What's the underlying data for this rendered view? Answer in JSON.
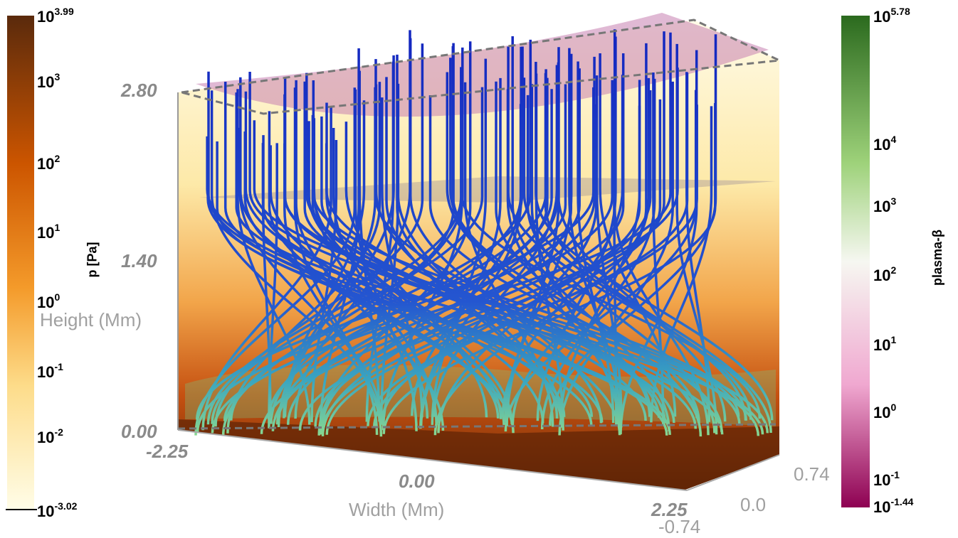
{
  "left_colorbar": {
    "label": "p [Pa]",
    "ticks": [
      {
        "base": "10",
        "exponent": "3.99"
      },
      {
        "base": "10",
        "exponent": "3"
      },
      {
        "base": "10",
        "exponent": "2"
      },
      {
        "base": "10",
        "exponent": "1"
      },
      {
        "base": "10",
        "exponent": "0"
      },
      {
        "base": "10",
        "exponent": "-1"
      },
      {
        "base": "10",
        "exponent": "-2"
      },
      {
        "base": "10",
        "exponent": "-3.02"
      }
    ]
  },
  "height_axis": {
    "label": "Height (Mm)",
    "ticks": [
      "2.80",
      "1.40",
      "0.00"
    ]
  },
  "width_axis": {
    "label": "Width (Mm)",
    "ticks": [
      "-2.25",
      "0.00",
      "2.25"
    ]
  },
  "depth_axis": {
    "ticks": [
      "0.74",
      "0.0",
      "-0.74"
    ]
  },
  "right_colorbar": {
    "label": "plasma-β",
    "ticks": [
      {
        "base": "10",
        "exponent": "5.78"
      },
      {
        "base": "10",
        "exponent": "4"
      },
      {
        "base": "10",
        "exponent": "3"
      },
      {
        "base": "10",
        "exponent": "2"
      },
      {
        "base": "10",
        "exponent": "1"
      },
      {
        "base": "10",
        "exponent": "0"
      },
      {
        "base": "10",
        "exponent": "-1"
      },
      {
        "base": "10",
        "exponent": "-1.44"
      }
    ]
  }
}
